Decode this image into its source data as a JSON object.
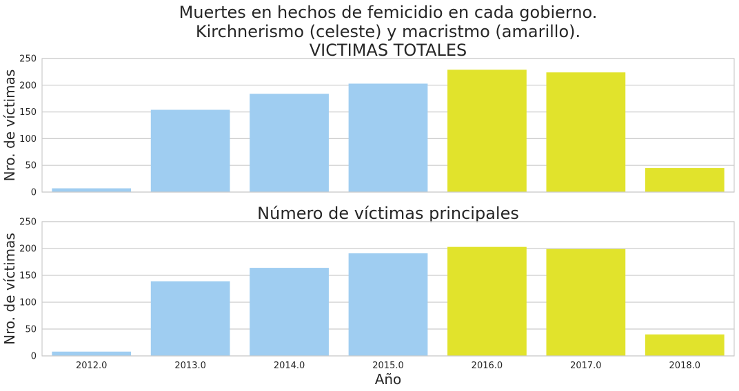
{
  "chart_data": [
    {
      "type": "bar",
      "title": [
        "Muertes en hechos de femicidio en cada gobierno.",
        "Kirchnerismo (celeste) y macristmo (amarillo).",
        "VICTIMAS TOTALES"
      ],
      "ylabel": "Nro. de víctimas",
      "xlabel": "",
      "categories": [
        "2012.0",
        "2013.0",
        "2014.0",
        "2015.0",
        "2016.0",
        "2017.0",
        "2018.0"
      ],
      "values": [
        7,
        154,
        184,
        203,
        229,
        224,
        45
      ],
      "bar_colors": [
        "#9fcdf1",
        "#9fcdf1",
        "#9fcdf1",
        "#9fcdf1",
        "#e1e32c",
        "#e1e32c",
        "#e1e32c"
      ],
      "ylim": [
        0,
        250
      ],
      "yticks": [
        0,
        50,
        100,
        150,
        200,
        250
      ],
      "grid": "horizontal",
      "show_xticklabels": false
    },
    {
      "type": "bar",
      "title": [
        "Número de víctimas principales"
      ],
      "ylabel": "Nro. de víctimas",
      "xlabel": "Año",
      "categories": [
        "2012.0",
        "2013.0",
        "2014.0",
        "2015.0",
        "2016.0",
        "2017.0",
        "2018.0"
      ],
      "values": [
        8,
        139,
        164,
        191,
        203,
        199,
        40
      ],
      "bar_colors": [
        "#9fcdf1",
        "#9fcdf1",
        "#9fcdf1",
        "#9fcdf1",
        "#e1e32c",
        "#e1e32c",
        "#e1e32c"
      ],
      "ylim": [
        0,
        250
      ],
      "yticks": [
        0,
        50,
        100,
        150,
        200,
        250
      ],
      "grid": "horizontal",
      "show_xticklabels": true
    }
  ]
}
